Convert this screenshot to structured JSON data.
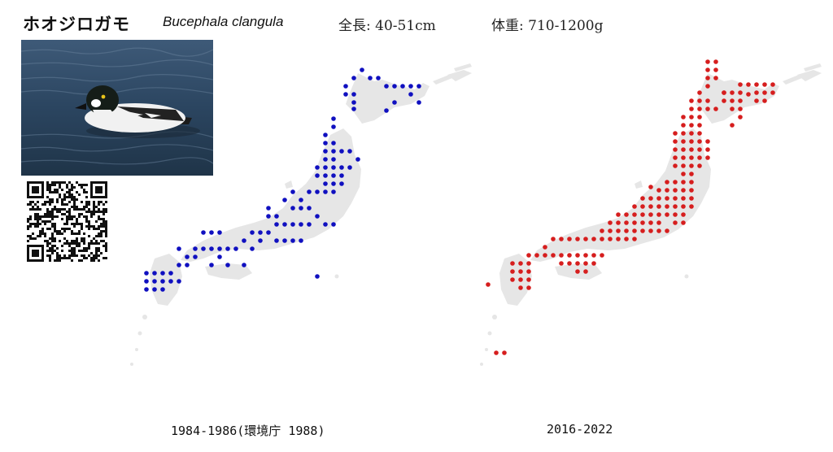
{
  "header": {
    "name_ja": "ホオジロガモ",
    "name_sci": "Bucephala clangula",
    "length": "全長: 40-51cm",
    "weight": "体重: 710-1200g"
  },
  "maps": [
    {
      "caption": "1984-1986(環境庁 1988)",
      "dot_color": "#1010c0"
    },
    {
      "caption": "2016-2022",
      "dot_color": "#d61e1e"
    }
  ],
  "colors": {
    "land": "#e6e6e6",
    "background": "#ffffff"
  }
}
